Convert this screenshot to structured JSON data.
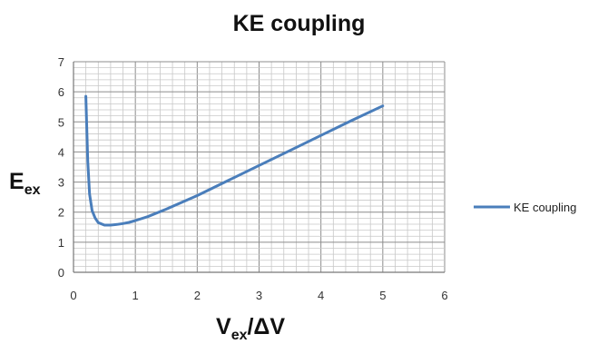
{
  "chart_data": {
    "type": "line",
    "title": "KE coupling",
    "ylabel": {
      "main": "E",
      "sub": "ex"
    },
    "xlabel": {
      "main": "V",
      "sub": "ex",
      "rest": "/ΔV"
    },
    "xlim": [
      0,
      6
    ],
    "ylim": [
      0,
      7
    ],
    "xticks": [
      "0",
      "1",
      "2",
      "3",
      "4",
      "5",
      "6"
    ],
    "yticks": [
      "0",
      "1",
      "2",
      "3",
      "4",
      "5",
      "6",
      "7"
    ],
    "grid": "major and minor",
    "legend_position": "right",
    "series": [
      {
        "name": "KE coupling",
        "color": "#4a7ebb",
        "x": [
          0.2,
          0.23,
          0.26,
          0.3,
          0.35,
          0.4,
          0.5,
          0.6,
          0.7,
          0.8,
          0.9,
          1.0,
          1.2,
          1.5,
          2.0,
          2.5,
          3.0,
          3.5,
          4.0,
          4.5,
          5.0
        ],
        "y": [
          5.85,
          3.7,
          2.6,
          2.05,
          1.8,
          1.65,
          1.57,
          1.57,
          1.59,
          1.62,
          1.66,
          1.72,
          1.85,
          2.1,
          2.55,
          3.05,
          3.55,
          4.05,
          4.55,
          5.05,
          5.53
        ]
      }
    ]
  }
}
